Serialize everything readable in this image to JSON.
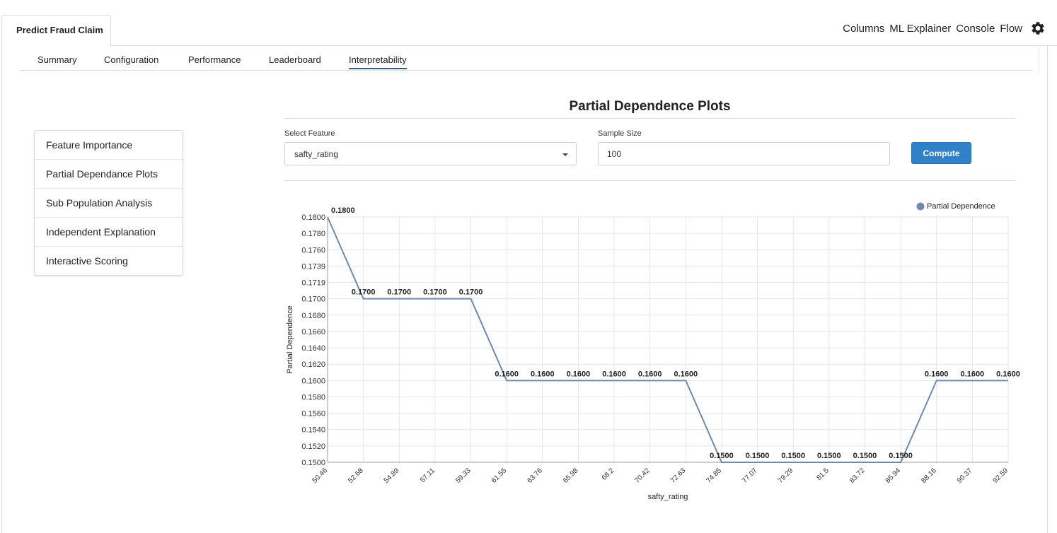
{
  "app": {
    "tab_title": "Predict Fraud Claim",
    "top_links": [
      "Columns",
      "ML Explainer",
      "Console",
      "Flow"
    ],
    "settings_icon": "gear-icon"
  },
  "subtabs": {
    "items": [
      "Summary",
      "Configuration",
      "Performance",
      "Leaderboard",
      "Interpretability"
    ],
    "active": "Interpretability"
  },
  "sidebar": {
    "items": [
      "Feature Importance",
      "Partial Dependance Plots",
      "Sub Population Analysis",
      "Independent Explanation",
      "Interactive Scoring"
    ]
  },
  "main": {
    "title": "Partial Dependence Plots",
    "select_feature_label": "Select Feature",
    "select_feature_value": "safty_rating",
    "sample_size_label": "Sample Size",
    "sample_size_value": "100",
    "compute_label": "Compute"
  },
  "chart_data": {
    "type": "line",
    "xlabel": "safty_rating",
    "ylabel": "Partial Dependence",
    "legend": "Partial Dependence",
    "legend_position": "top-right",
    "grid": true,
    "line_color": "#7089ad",
    "ylim": [
      0.15,
      0.18
    ],
    "y_ticks": [
      "0.1500",
      "0.1520",
      "0.1540",
      "0.1560",
      "0.1580",
      "0.1600",
      "0.1620",
      "0.1640",
      "0.1660",
      "0.1680",
      "0.1700",
      "0.1719",
      "0.1739",
      "0.1760",
      "0.1780",
      "0.1800"
    ],
    "x": [
      "50.46",
      "52.68",
      "54.89",
      "57.11",
      "59.33",
      "61.55",
      "63.76",
      "65.98",
      "68.2",
      "70.42",
      "72.63",
      "74.85",
      "77.07",
      "79.29",
      "81.5",
      "83.72",
      "85.94",
      "88.16",
      "90.37",
      "92.59"
    ],
    "series": [
      {
        "name": "Partial Dependence",
        "values": [
          0.18,
          0.17,
          0.17,
          0.17,
          0.17,
          0.16,
          0.16,
          0.16,
          0.16,
          0.16,
          0.16,
          0.15,
          0.15,
          0.15,
          0.15,
          0.15,
          0.15,
          0.16,
          0.16,
          0.16
        ],
        "labels": [
          "0.1800",
          "0.1700",
          "0.1700",
          "0.1700",
          "0.1700",
          "0.1600",
          "0.1600",
          "0.1600",
          "0.1600",
          "0.1600",
          "0.1600",
          "0.1500",
          "0.1500",
          "0.1500",
          "0.1500",
          "0.1500",
          "0.1500",
          "0.1600",
          "0.1600",
          "0.1600"
        ]
      }
    ]
  }
}
